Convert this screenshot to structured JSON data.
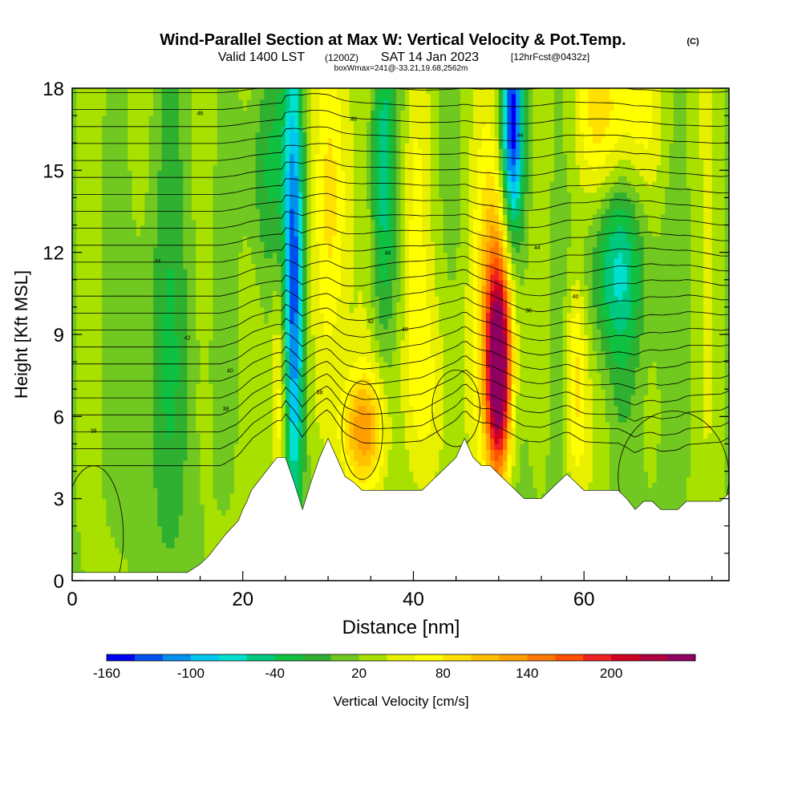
{
  "chart_data": {
    "type": "heatmap",
    "title": "Wind-Parallel Section at Max W: Vertical Velocity & Pot.Temp.",
    "title_units": "(C)",
    "subtitle": {
      "valid": "Valid 1400 LST",
      "utc": "(1200Z)",
      "date": "SAT 14 Jan 2023",
      "forecast": "[12hrFcst@0432z]"
    },
    "box_note": "boxWmax=241@-33.21,19.68,2562m",
    "xlabel": "Distance [nm]",
    "ylabel": "Height [Kft MSL]",
    "xlim": [
      0,
      77
    ],
    "ylim": [
      0,
      18
    ],
    "x_ticks": [
      "0",
      "20",
      "40",
      "60"
    ],
    "y_ticks": [
      "0",
      "3",
      "6",
      "9",
      "12",
      "15",
      "18"
    ],
    "colorbar": {
      "label": "Vertical Velocity [cm/s]",
      "tick_labels": [
        "-160",
        "-100",
        "-40",
        "20",
        "80",
        "140",
        "200"
      ],
      "colors": [
        "#0000f0",
        "#0050f0",
        "#0090f0",
        "#00c8f0",
        "#00e0d0",
        "#00c880",
        "#10c040",
        "#30b030",
        "#70c820",
        "#a8e000",
        "#e8f000",
        "#ffff00",
        "#ffe000",
        "#ffc000",
        "#ffa000",
        "#ff7800",
        "#ff5000",
        "#f02020",
        "#d00020",
        "#b00040",
        "#900060"
      ]
    },
    "theta_label_values": [
      "46",
      "46",
      "44",
      "44",
      "44",
      "44",
      "42",
      "42",
      "40",
      "40",
      "40",
      "38",
      "38",
      "38",
      "38"
    ],
    "terrain": {
      "x": [
        0,
        13.5,
        15,
        16,
        17,
        18,
        19.5,
        20,
        20.5,
        21,
        22,
        23,
        24,
        25,
        26,
        27,
        28,
        29,
        30,
        31,
        32,
        33,
        34,
        35,
        37,
        39,
        41,
        42,
        43,
        44,
        45,
        46,
        47,
        48,
        49,
        50,
        51,
        52,
        53,
        54,
        55,
        56,
        57,
        58,
        59,
        60,
        62,
        64,
        65,
        66,
        67,
        68,
        69,
        70,
        71,
        72,
        73,
        74,
        75,
        76,
        77
      ],
      "h": [
        0.3,
        0.3,
        0.6,
        0.9,
        1.3,
        1.7,
        2.2,
        2.6,
        2.9,
        3.3,
        3.7,
        4.1,
        4.5,
        4.5,
        3.6,
        2.6,
        3.6,
        4.5,
        5.2,
        4.5,
        3.8,
        3.6,
        3.3,
        3.3,
        3.3,
        3.3,
        3.3,
        3.6,
        3.9,
        4.2,
        4.5,
        5.2,
        4.5,
        4.2,
        4.2,
        3.9,
        3.6,
        3.3,
        3.0,
        3.0,
        3.0,
        3.3,
        3.6,
        3.9,
        3.6,
        3.3,
        3.3,
        3.3,
        3.0,
        2.6,
        2.9,
        2.9,
        2.6,
        2.6,
        2.6,
        2.9,
        2.9,
        2.9,
        2.9,
        2.9,
        3.2
      ]
    },
    "fields": {
      "background_ws": 0,
      "updrafts": [
        {
          "x": 50,
          "z": 7.5,
          "sx": 1.0,
          "sz": 2.6,
          "w": 240
        },
        {
          "x": 49.8,
          "z": 11,
          "sx": 1.6,
          "sz": 4,
          "w": 90
        },
        {
          "x": 34,
          "z": 5.5,
          "sx": 1.9,
          "sz": 1.5,
          "w": 95
        },
        {
          "x": 30.5,
          "z": 14,
          "sx": 1.4,
          "sz": 5,
          "w": 70
        },
        {
          "x": 24.3,
          "z": 6.5,
          "sx": 0.7,
          "sz": 3.5,
          "w": 70
        },
        {
          "x": 64,
          "z": 17,
          "sx": 3.5,
          "sz": 2.5,
          "w": 70
        },
        {
          "x": 59,
          "z": 7.5,
          "sx": 0.9,
          "sz": 3,
          "w": 70
        },
        {
          "x": 40,
          "z": 14,
          "sx": 1.2,
          "sz": 5,
          "w": 45
        },
        {
          "x": 41,
          "z": 7,
          "sx": 3.5,
          "sz": 3,
          "w": 35
        }
      ],
      "downdrafts": [
        {
          "x": 26,
          "z": 11,
          "sx": 0.8,
          "sz": 6,
          "w": -140
        },
        {
          "x": 51.6,
          "z": 16.5,
          "sx": 0.9,
          "sz": 2.8,
          "w": -170
        },
        {
          "x": 36.3,
          "z": 15,
          "sx": 1.0,
          "sz": 4.5,
          "w": -70
        },
        {
          "x": 63.5,
          "z": 11.5,
          "sx": 2.5,
          "sz": 2.5,
          "w": -80
        },
        {
          "x": 22.5,
          "z": 15,
          "sx": 1.5,
          "sz": 3,
          "w": -45
        },
        {
          "x": 10,
          "z": 8,
          "sx": 4,
          "sz": 5,
          "w": -25
        }
      ]
    }
  }
}
